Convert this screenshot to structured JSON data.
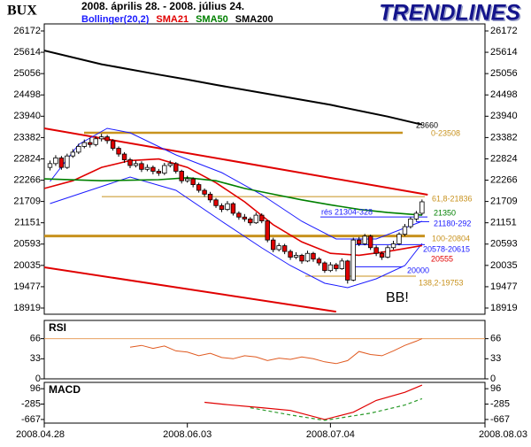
{
  "chart_data": [
    {
      "type": "candlestick",
      "title": "BUX",
      "subtitle": "2008. április 28. - 2008. július 24.",
      "brand": "TRENDLINES",
      "x": [
        1,
        2,
        3,
        4,
        5,
        6,
        7,
        8,
        9,
        10,
        11,
        12,
        13,
        14,
        15,
        16,
        17,
        18,
        19,
        20,
        21,
        22,
        23,
        24,
        25,
        26,
        27,
        28,
        29,
        30,
        31,
        32,
        33,
        34,
        35,
        36,
        37,
        38,
        39,
        40,
        41,
        42,
        43,
        44,
        45,
        46,
        47,
        48,
        49,
        50,
        51,
        52,
        53,
        54,
        55,
        56,
        57,
        58,
        59,
        60,
        61,
        62,
        63,
        64,
        65,
        66
      ],
      "open": [
        22600,
        22700,
        22850,
        22600,
        22900,
        23000,
        23150,
        23250,
        23200,
        23350,
        23400,
        23300,
        23100,
        22950,
        22800,
        22650,
        22700,
        22550,
        22600,
        22500,
        22450,
        22650,
        22700,
        22500,
        22250,
        22300,
        22150,
        22000,
        21900,
        21750,
        21600,
        21500,
        21650,
        21400,
        21300,
        21250,
        21150,
        21350,
        21200,
        20700,
        20450,
        20550,
        20400,
        20250,
        20300,
        20150,
        20350,
        20200,
        20100,
        19900,
        20050,
        19950,
        20150,
        19650,
        20700,
        20600,
        20800,
        20500,
        20350,
        20250,
        20500,
        20600,
        20850,
        21050,
        21250,
        21400
      ],
      "high": [
        22780,
        22920,
        22900,
        22960,
        23080,
        23220,
        23330,
        23380,
        23420,
        23480,
        23450,
        23340,
        23150,
        23000,
        22850,
        22780,
        22760,
        22680,
        22650,
        22560,
        22720,
        22780,
        22740,
        22540,
        22380,
        22340,
        22200,
        22050,
        21960,
        21800,
        21660,
        21720,
        21690,
        21450,
        21380,
        21300,
        21420,
        21400,
        21220,
        20760,
        20620,
        20600,
        20450,
        20380,
        20340,
        20420,
        20390,
        20250,
        20140,
        20120,
        20100,
        20220,
        20180,
        20760,
        20780,
        20860,
        20840,
        20560,
        20400,
        20560,
        20680,
        20900,
        21120,
        21300,
        21460,
        21760
      ],
      "low": [
        22520,
        22640,
        22540,
        22560,
        22850,
        22950,
        23100,
        23120,
        23150,
        23280,
        23220,
        23040,
        22880,
        22720,
        22580,
        22600,
        22480,
        22500,
        22420,
        22380,
        22400,
        22600,
        22440,
        22180,
        22200,
        22080,
        21940,
        21830,
        21680,
        21540,
        21430,
        21460,
        21340,
        21230,
        21180,
        21080,
        21120,
        21140,
        20640,
        20380,
        20400,
        20330,
        20180,
        20200,
        20080,
        20120,
        20130,
        20030,
        19840,
        19860,
        19880,
        19920,
        19560,
        19620,
        20540,
        20560,
        20440,
        20280,
        20180,
        20220,
        20450,
        20560,
        20800,
        21000,
        21200,
        21350
      ],
      "close": [
        22700,
        22850,
        22600,
        22900,
        23000,
        23150,
        23250,
        23200,
        23350,
        23400,
        23300,
        23100,
        22950,
        22800,
        22650,
        22700,
        22550,
        22600,
        22500,
        22450,
        22650,
        22700,
        22500,
        22250,
        22300,
        22150,
        22000,
        21900,
        21750,
        21600,
        21500,
        21650,
        21400,
        21300,
        21250,
        21150,
        21350,
        21200,
        20700,
        20450,
        20550,
        20400,
        20250,
        20300,
        20150,
        20350,
        20200,
        20100,
        19900,
        20050,
        19950,
        20150,
        19650,
        20700,
        20600,
        20800,
        20500,
        20350,
        20250,
        20500,
        20600,
        20850,
        21050,
        21250,
        21400,
        21700
      ],
      "xlim": [
        0,
        77
      ],
      "xticks": [
        {
          "value": 0,
          "label": "2008.04.28"
        },
        {
          "value": 25,
          "label": "2008.06.03"
        },
        {
          "value": 50,
          "label": "2008.07.04"
        },
        {
          "value": 77,
          "label": "2008.08.03"
        }
      ],
      "ylim": [
        18757,
        26357
      ],
      "yticks": [
        18919,
        19477,
        20035,
        20593,
        21151,
        21709,
        22266,
        22824,
        23382,
        23940,
        24498,
        25056,
        25614,
        26172
      ],
      "series": [
        {
          "name": "Bollinger(20,2)",
          "color": "#1a1aff",
          "upper": {
            "x": [
              1,
              6,
              11,
              15,
              23,
              31,
              38,
              45,
              51,
              58,
              66
            ],
            "values": [
              22232,
              23200,
              23623,
              23507,
              22928,
              22464,
              21885,
              21190,
              20726,
              20726,
              21190
            ]
          },
          "lower": {
            "x": [
              1,
              8,
              15,
              23,
              31,
              38,
              43,
              49,
              53,
              58,
              63,
              66
            ],
            "values": [
              21653,
              22000,
              22348,
              22000,
              21190,
              20494,
              20031,
              19567,
              19451,
              19683,
              20031,
              20610
            ]
          }
        },
        {
          "name": "SMA21",
          "color": "#e00000",
          "x": [
            0,
            5,
            10,
            15,
            20,
            25,
            30,
            35,
            40,
            45,
            50,
            55,
            60,
            66
          ],
          "values": [
            22050,
            22250,
            22600,
            22780,
            22820,
            22600,
            22200,
            21700,
            21100,
            20650,
            20350,
            20300,
            20400,
            20555
          ]
        },
        {
          "name": "SMA50",
          "color": "#008000",
          "x": [
            0,
            10,
            20,
            25,
            30,
            35,
            40,
            45,
            50,
            55,
            60,
            66
          ],
          "values": [
            22300,
            22250,
            22280,
            22330,
            22250,
            22050,
            21900,
            21750,
            21620,
            21500,
            21420,
            21350
          ]
        },
        {
          "name": "SMA200",
          "color": "#000000",
          "x": [
            0,
            10,
            20,
            25,
            30,
            40,
            50,
            60,
            66
          ],
          "values": [
            25660,
            25300,
            25030,
            24900,
            24760,
            24500,
            24240,
            23930,
            23720
          ]
        }
      ],
      "levels": [
        {
          "value": 23508,
          "color": "#c8921e"
        },
        {
          "value": 21836,
          "color": "#c8921e"
        },
        {
          "value": 20804,
          "color": "#c8921e"
        },
        {
          "value": 19753,
          "color": "#c8921e"
        },
        {
          "value": 21304,
          "color": "#1a1aff"
        },
        {
          "value": 21180,
          "color": "#1a1aff"
        },
        {
          "value": 20578,
          "color": "#1a1aff"
        },
        {
          "value": 20000,
          "color": "#1a1aff"
        }
      ],
      "trendlines": [
        {
          "color": "#e00000",
          "x": [
            0,
            67
          ],
          "values": [
            23623,
            21885
          ]
        },
        {
          "color": "#e00000",
          "x": [
            0,
            51
          ],
          "values": [
            19984,
            18825
          ]
        }
      ],
      "annotations": [
        {
          "text": "23660",
          "color": "#000000"
        },
        {
          "text": "0-23508",
          "color": "#c8921e"
        },
        {
          "text": "61,8-21836",
          "color": "#c8921e"
        },
        {
          "text": "rés 21304-328",
          "color": "#1a1aff"
        },
        {
          "text": "21350",
          "color": "#008000"
        },
        {
          "text": "21180-292",
          "color": "#1a1aff"
        },
        {
          "text": "100-20804",
          "color": "#c8921e"
        },
        {
          "text": "20578-20615",
          "color": "#1a1aff"
        },
        {
          "text": "20555",
          "color": "#e00000"
        },
        {
          "text": "20000",
          "color": "#1a1aff"
        },
        {
          "text": "138,2-19753",
          "color": "#c8921e"
        },
        {
          "text": "BB!",
          "color": "#000000"
        }
      ]
    },
    {
      "type": "line",
      "title": "RSI",
      "color": "#e05a20",
      "x": [
        15,
        17,
        19,
        21,
        23,
        25,
        27,
        29,
        31,
        33,
        35,
        37,
        39,
        41,
        43,
        45,
        47,
        49,
        51,
        53,
        55,
        57,
        59,
        61,
        63,
        65,
        66
      ],
      "values": [
        52,
        55,
        50,
        54,
        46,
        44,
        38,
        42,
        35,
        33,
        38,
        36,
        30,
        34,
        32,
        36,
        33,
        28,
        25,
        30,
        45,
        40,
        38,
        46,
        55,
        62,
        66
      ],
      "ylim": [
        0,
        96
      ],
      "yticks": [
        0,
        33,
        66
      ],
      "levels": [
        {
          "value": 66,
          "color": "#e8a060"
        }
      ]
    },
    {
      "type": "line",
      "title": "MACD",
      "ylim": [
        -757,
        253
      ],
      "yticks": [
        -667,
        -285,
        96
      ],
      "series": [
        {
          "color": "#e00000",
          "x": [
            28,
            32,
            38,
            43,
            49,
            54,
            58,
            63,
            66
          ],
          "values": [
            -241,
            -300,
            -375,
            -443,
            -667,
            -487,
            -196,
            6,
            186
          ]
        },
        {
          "color": "#2a9a2a",
          "dashed": true,
          "x": [
            36,
            43,
            49,
            57,
            63,
            66
          ],
          "values": [
            -375,
            -555,
            -689,
            -510,
            -308,
            -151
          ]
        }
      ]
    }
  ]
}
